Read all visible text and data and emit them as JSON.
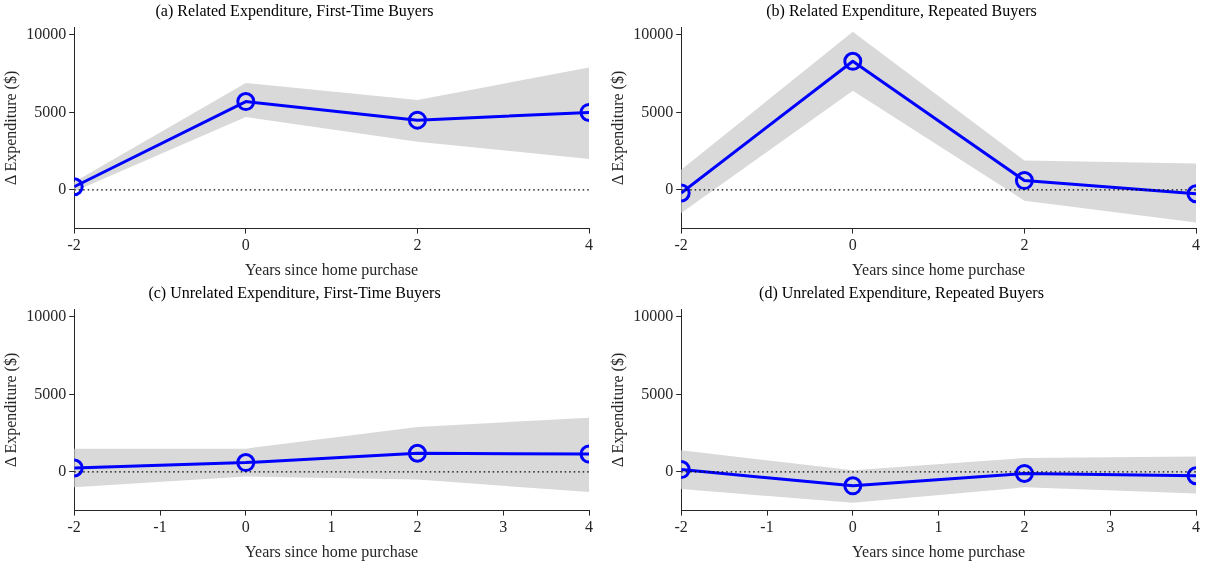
{
  "chart_data": [
    {
      "type": "line",
      "title": "(a) Related Expenditure, First-Time Buyers",
      "xlabel": "Years since home purchase",
      "ylabel": "Δ Expenditure ($)",
      "x": [
        -2,
        0,
        2,
        4
      ],
      "xlim": [
        -2,
        4
      ],
      "xticks": [
        -2,
        0,
        2,
        4
      ],
      "ylim": [
        -2500,
        10500
      ],
      "yticks": [
        0,
        5000,
        10000
      ],
      "grid": false,
      "legend": false,
      "marker": "circle",
      "line_style": "solid",
      "series": [
        {
          "color": "#0000ff",
          "values": [
            200,
            5700,
            4500,
            5000
          ],
          "lower": [
            -100,
            4700,
            3100,
            2000
          ],
          "upper": [
            500,
            6900,
            5800,
            7900
          ]
        }
      ],
      "ref_lines": [
        {
          "axis": "y",
          "value": 0,
          "color": "#000000",
          "line_style": "dotted"
        }
      ]
    },
    {
      "type": "line",
      "title": "(b) Related Expenditure, Repeated Buyers",
      "xlabel": "Years since home purchase",
      "ylabel": "Δ Expenditure ($)",
      "x": [
        -2,
        0,
        2,
        4
      ],
      "xlim": [
        -2,
        4
      ],
      "xticks": [
        -2,
        0,
        2,
        4
      ],
      "ylim": [
        -2500,
        10500
      ],
      "yticks": [
        0,
        5000,
        10000
      ],
      "grid": false,
      "legend": false,
      "marker": "circle",
      "line_style": "solid",
      "series": [
        {
          "color": "#0000ff",
          "values": [
            -200,
            8300,
            600,
            -250
          ],
          "lower": [
            -1500,
            6400,
            -700,
            -2100
          ],
          "upper": [
            1300,
            10200,
            1900,
            1700
          ]
        }
      ],
      "ref_lines": [
        {
          "axis": "y",
          "value": 0,
          "color": "#000000",
          "line_style": "dotted"
        }
      ]
    },
    {
      "type": "line",
      "title": "(c) Unrelated Expenditure, First-Time Buyers",
      "xlabel": "Years since home purchase",
      "ylabel": "Δ Expenditure ($)",
      "x": [
        -2,
        0,
        2,
        4
      ],
      "xlim": [
        -2,
        4
      ],
      "xticks": [
        -2,
        -1,
        0,
        1,
        2,
        3,
        4
      ],
      "ylim": [
        -2500,
        10500
      ],
      "yticks": [
        0,
        5000,
        10000
      ],
      "grid": false,
      "legend": false,
      "marker": "circle",
      "line_style": "solid",
      "series": [
        {
          "color": "#0000ff",
          "values": [
            250,
            600,
            1200,
            1150
          ],
          "lower": [
            -1000,
            -300,
            -500,
            -1300
          ],
          "upper": [
            1500,
            1500,
            2900,
            3500
          ]
        }
      ],
      "ref_lines": [
        {
          "axis": "y",
          "value": 0,
          "color": "#000000",
          "line_style": "dotted"
        }
      ]
    },
    {
      "type": "line",
      "title": "(d) Unrelated Expenditure, Repeated Buyers",
      "xlabel": "Years since home purchase",
      "ylabel": "Δ Expenditure ($)",
      "x": [
        -2,
        0,
        2,
        4
      ],
      "xlim": [
        -2,
        4
      ],
      "xticks": [
        -2,
        -1,
        0,
        1,
        2,
        3,
        4
      ],
      "ylim": [
        -2500,
        10500
      ],
      "yticks": [
        0,
        5000,
        10000
      ],
      "grid": false,
      "legend": false,
      "marker": "circle",
      "line_style": "solid",
      "series": [
        {
          "color": "#0000ff",
          "values": [
            150,
            -900,
            -100,
            -250
          ],
          "lower": [
            -1100,
            -2000,
            -1000,
            -1400
          ],
          "upper": [
            1400,
            100,
            900,
            1000
          ]
        }
      ],
      "ref_lines": [
        {
          "axis": "y",
          "value": 0,
          "color": "#000000",
          "line_style": "dotted"
        }
      ]
    }
  ]
}
